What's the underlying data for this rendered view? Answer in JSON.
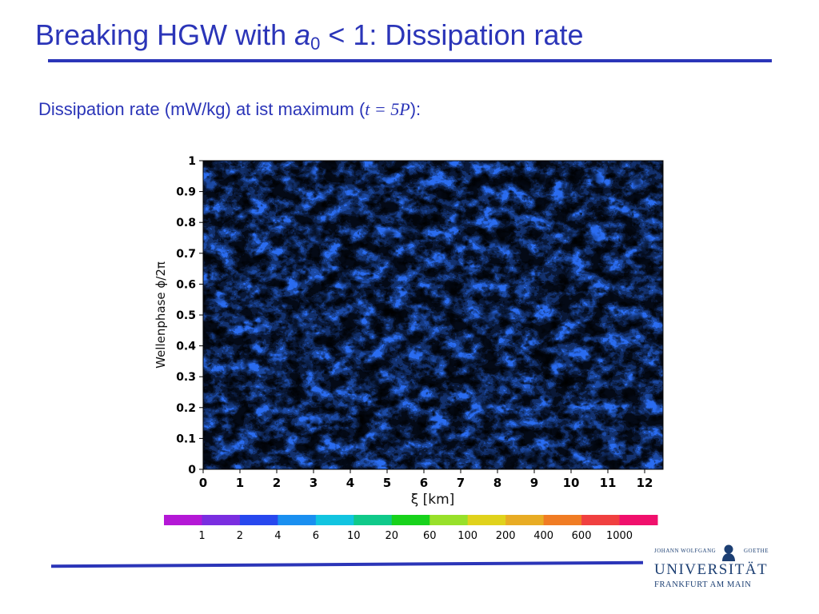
{
  "title": {
    "prefix": "Breaking HGW with ",
    "var": "a",
    "sub": "0",
    "suffix": " < 1: Dissipation rate"
  },
  "subtitle": {
    "prefix": "Dissipation rate (mW/kg) at ist maximum (",
    "math": "t = 5P",
    "suffix": "):"
  },
  "figure": {
    "y_axis_label": "Wellenphase  ϕ/2π",
    "x_axis_label": "ξ  [km]",
    "x_ticks": [
      "0",
      "1",
      "2",
      "3",
      "4",
      "5",
      "6",
      "7",
      "8",
      "9",
      "10",
      "11",
      "12"
    ],
    "y_ticks": [
      "0",
      "0.1",
      "0.2",
      "0.3",
      "0.4",
      "0.5",
      "0.6",
      "0.7",
      "0.8",
      "0.9",
      "1"
    ],
    "colorbar": {
      "labels": [
        "1",
        "2",
        "4",
        "6",
        "10",
        "20",
        "60",
        "100",
        "200",
        "400",
        "600",
        "1000"
      ],
      "colors": [
        "#b418d6",
        "#7a2ee0",
        "#2848ee",
        "#1a8ff0",
        "#12c4e0",
        "#10c98a",
        "#18d21c",
        "#98e02a",
        "#e0d21c",
        "#e8ac24",
        "#f07c24",
        "#f04040",
        "#f0106c"
      ]
    }
  },
  "logo": {
    "line1_left": "JOHANN WOLFGANG",
    "line1_right": "GOETHE",
    "line2": "UNIVERSITÄT",
    "line3": "FRANKFURT AM MAIN"
  },
  "colors": {
    "accent": "#2b35b8",
    "logo": "#1c3f73"
  }
}
